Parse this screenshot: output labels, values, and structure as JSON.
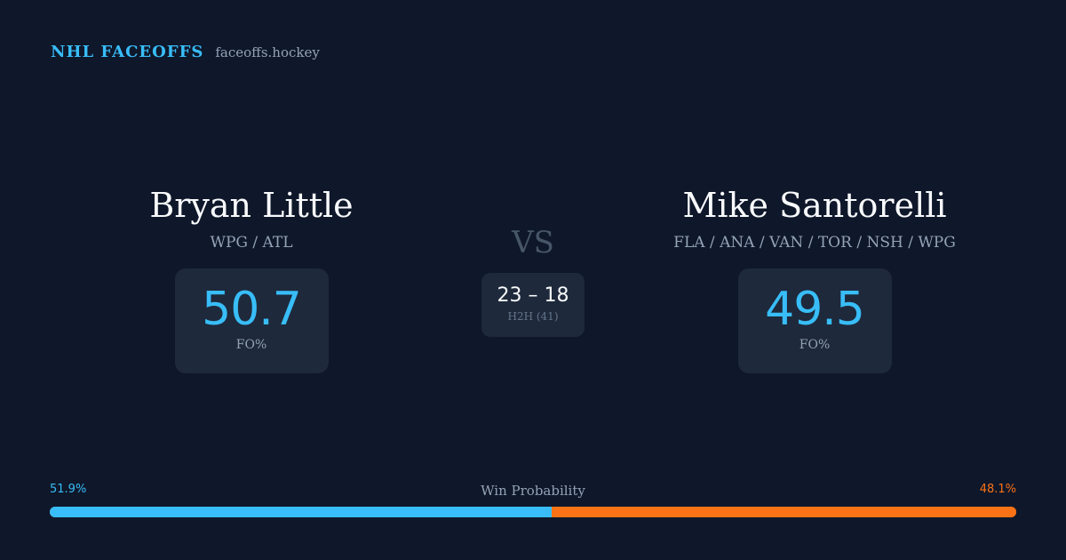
{
  "brand": {
    "title": "NHL FACEOFFS",
    "domain": "faceoffs.hockey"
  },
  "player_left": {
    "name": "Bryan Little",
    "teams": "WPG / ATL",
    "fo_value": "50.7",
    "fo_label": "FO%"
  },
  "player_right": {
    "name": "Mike Santorelli",
    "teams": "FLA / ANA / VAN / TOR / NSH / WPG",
    "fo_value": "49.5",
    "fo_label": "FO%"
  },
  "matchup": {
    "vs": "VS",
    "h2h_score": "23 – 18",
    "h2h_label": "H2H (41)"
  },
  "win_probability": {
    "title": "Win Probability",
    "left_label": "51.9%",
    "right_label": "48.1%",
    "left_fraction": 0.519,
    "left_color": "#38bdf8",
    "right_color": "#f97316"
  }
}
